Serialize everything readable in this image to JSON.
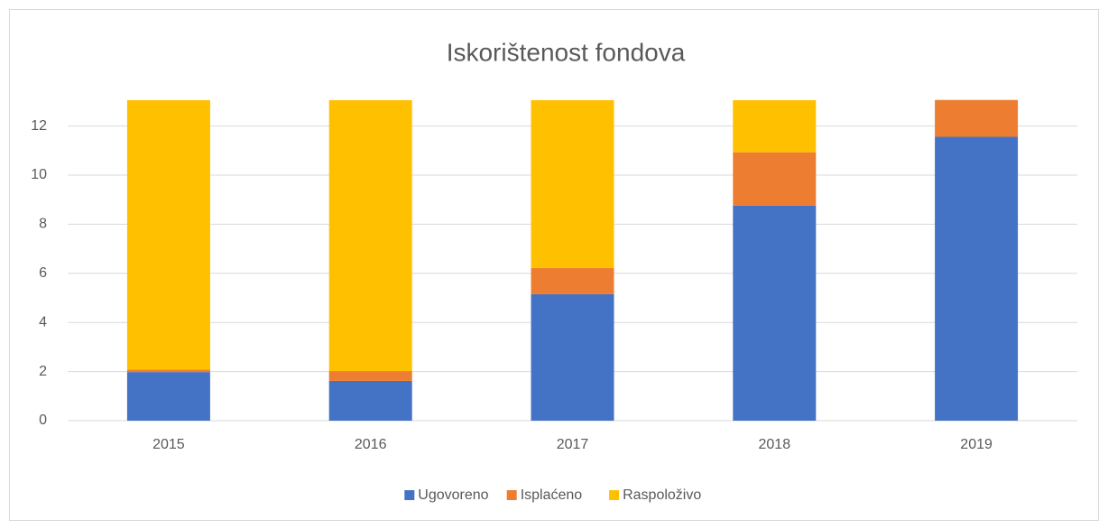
{
  "chart_data": {
    "type": "stacked_bar",
    "title": "Iskorištenost fondova",
    "categories": [
      "2015",
      "2016",
      "2017",
      "2018",
      "2019"
    ],
    "series": [
      {
        "name": "Ugovoreno",
        "color": "#4472c4",
        "values": [
          1.98,
          1.62,
          5.15,
          8.76,
          11.56
        ]
      },
      {
        "name": "Isplaćeno",
        "color": "#ed7d31",
        "values": [
          0.1,
          0.4,
          1.07,
          2.17,
          1.5
        ]
      },
      {
        "name": "Raspoloživo",
        "color": "#ffc000",
        "values": [
          10.97,
          11.03,
          6.83,
          2.12,
          0
        ]
      }
    ],
    "ylim": [
      0,
      13.05
    ],
    "yticks": [
      0,
      2,
      4,
      6,
      8,
      10,
      12
    ],
    "grid": true,
    "legend": "bottom"
  }
}
